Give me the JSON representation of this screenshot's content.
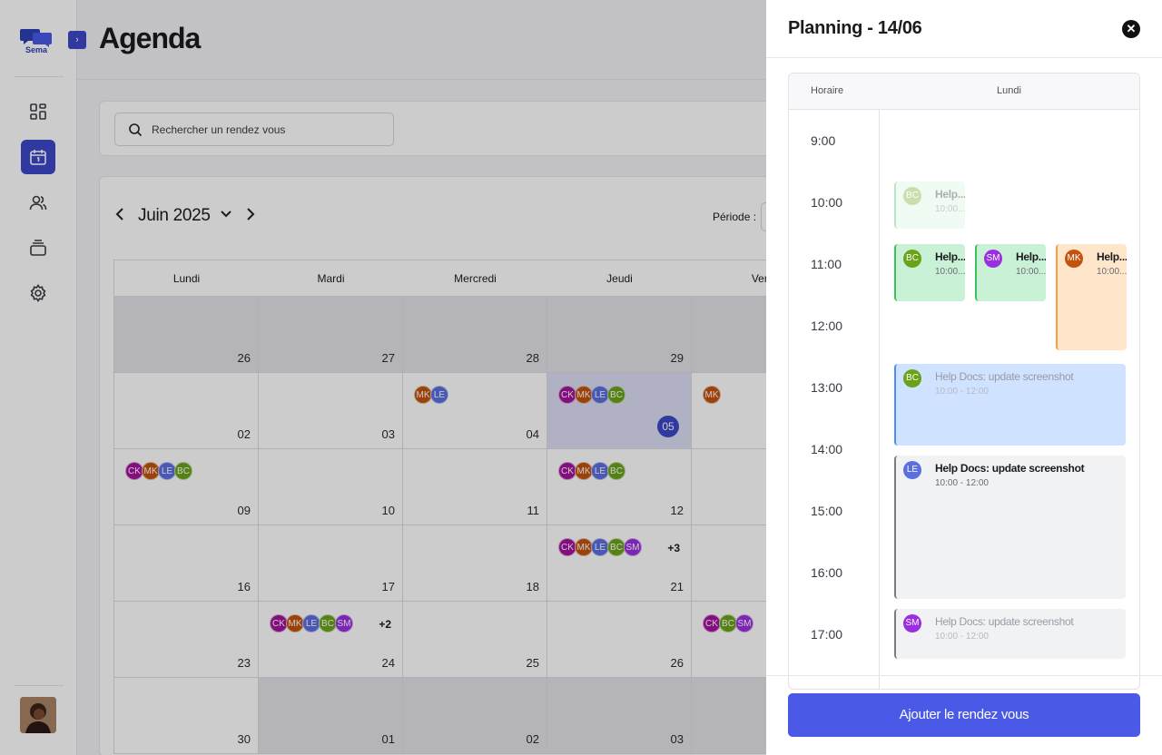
{
  "app": {
    "logo_text": "Sema",
    "page_title": "Agenda"
  },
  "search": {
    "placeholder": "Rechercher un rendez vous"
  },
  "calendar": {
    "month_label": "Juin 2025",
    "period_label": "Période :",
    "weekdays": [
      "Lundi",
      "Mardi",
      "Mercredi",
      "Jeudi",
      "Vend"
    ],
    "weeks": [
      [
        {
          "day": "26",
          "muted": true
        },
        {
          "day": "27",
          "muted": true
        },
        {
          "day": "28",
          "muted": true
        },
        {
          "day": "29",
          "muted": true
        },
        {
          "day": "",
          "muted": true
        }
      ],
      [
        {
          "day": "02"
        },
        {
          "day": "03"
        },
        {
          "day": "04",
          "avatars": [
            "MK",
            "LE"
          ]
        },
        {
          "day": "05",
          "today": true,
          "avatars": [
            "CK",
            "MK",
            "LE",
            "BC"
          ]
        },
        {
          "day": "",
          "avatars": [
            "MK"
          ]
        }
      ],
      [
        {
          "day": "09",
          "avatars": [
            "CK",
            "MK",
            "LE",
            "BC"
          ]
        },
        {
          "day": "10"
        },
        {
          "day": "11"
        },
        {
          "day": "12",
          "avatars": [
            "CK",
            "MK",
            "LE",
            "BC"
          ]
        },
        {
          "day": ""
        }
      ],
      [
        {
          "day": "16"
        },
        {
          "day": "17"
        },
        {
          "day": "18"
        },
        {
          "day": "21",
          "avatars": [
            "CK",
            "MK",
            "LE",
            "BC",
            "SM"
          ],
          "more": "+3"
        },
        {
          "day": ""
        }
      ],
      [
        {
          "day": "23"
        },
        {
          "day": "24",
          "avatars": [
            "CK",
            "MK",
            "LE",
            "BC",
            "SM"
          ],
          "more": "+2"
        },
        {
          "day": "25"
        },
        {
          "day": "26"
        },
        {
          "day": "",
          "avatars": [
            "CK",
            "BC",
            "SM"
          ]
        }
      ],
      [
        {
          "day": "30"
        },
        {
          "day": "01",
          "muted": true
        },
        {
          "day": "02",
          "muted": true
        },
        {
          "day": "03",
          "muted": true
        },
        {
          "day": "",
          "muted": true
        }
      ]
    ]
  },
  "avatar_colors": {
    "CK": "#a4139e",
    "MK": "#c2530e",
    "LE": "#5b6fe0",
    "BC": "#6aa31a",
    "SM": "#9b2fe0"
  },
  "drawer": {
    "title": "Planning - 14/06",
    "col_time": "Horaire",
    "col_day": "Lundi",
    "times": [
      "9:00",
      "10:00",
      "11:00",
      "12:00",
      "13:00",
      "14:00",
      "15:00",
      "16:00",
      "17:00"
    ],
    "events": [
      {
        "initials": "BC",
        "title": "Help...",
        "time": "10:00...",
        "bg": "#d4f5dd",
        "border": "#3cbf5d",
        "faded": true,
        "narrow": true
      },
      {
        "initials": "BC",
        "title": "Help...",
        "time": "10:00...",
        "bg": "#c9f1d5",
        "border": "#3cbf5d",
        "narrow": true
      },
      {
        "initials": "SM",
        "title": "Help...",
        "time": "10:00...",
        "bg": "#c9f1d5",
        "border": "#3cbf5d",
        "narrow": true
      },
      {
        "initials": "MK",
        "title": "Help...",
        "time": "10:00...",
        "bg": "#ffe5c9",
        "border": "#f5a03a",
        "narrow": true
      },
      {
        "initials": "BC",
        "title": "Help Docs: update screenshot",
        "time": "10:00 - 12:00",
        "bg": "#cfe2ff",
        "border": "#4a8ef0",
        "faded_text": true
      },
      {
        "initials": "LE",
        "title": "Help Docs: update screenshot",
        "time": "10:00 - 12:00",
        "bg": "#f1f2f4",
        "border": "#7a7a84"
      },
      {
        "initials": "SM",
        "title": "Help Docs: update screenshot",
        "time": "10:00 - 12:00",
        "bg": "#f1f2f4",
        "border": "#7a7a84",
        "faded_text": true
      }
    ],
    "add_button": "Ajouter le rendez vous"
  }
}
